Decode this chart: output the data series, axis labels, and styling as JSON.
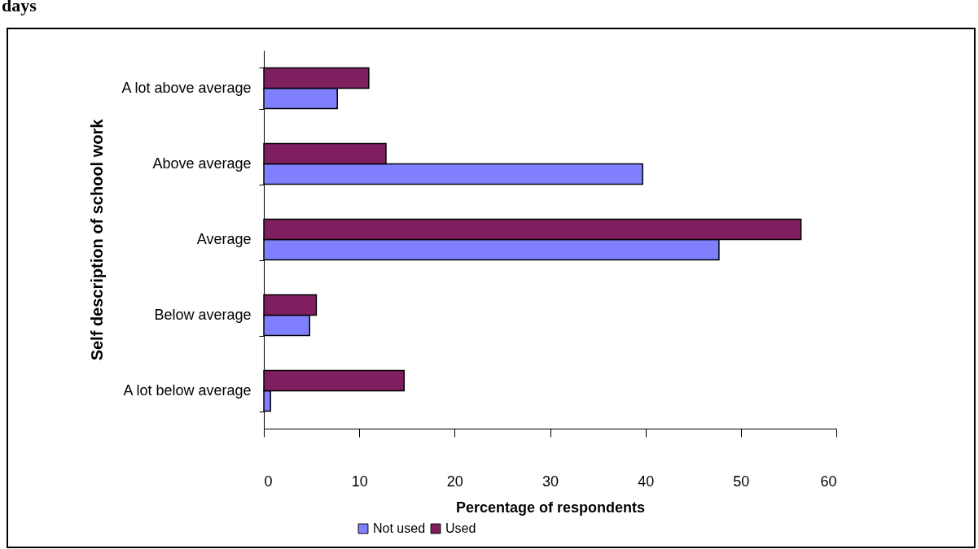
{
  "chart_data": {
    "type": "bar",
    "orientation": "horizontal",
    "title": "days",
    "xlabel": "Percentage of respondents",
    "ylabel": "Self description of school work",
    "categories": [
      "A lot above average",
      "Above average",
      "Average",
      "Below average",
      "A lot below average"
    ],
    "series": [
      {
        "name": "Not used",
        "color": "#8080ff",
        "values": [
          7.7,
          39.7,
          47.7,
          4.8,
          0.7
        ]
      },
      {
        "name": "Used",
        "color": "#7f1f5f",
        "values": [
          11.0,
          12.8,
          56.3,
          5.5,
          14.7
        ]
      }
    ],
    "xlim": [
      0,
      60
    ],
    "xticks": [
      0,
      10,
      20,
      30,
      40,
      50,
      60
    ],
    "grid": false,
    "legend": "bottom"
  }
}
